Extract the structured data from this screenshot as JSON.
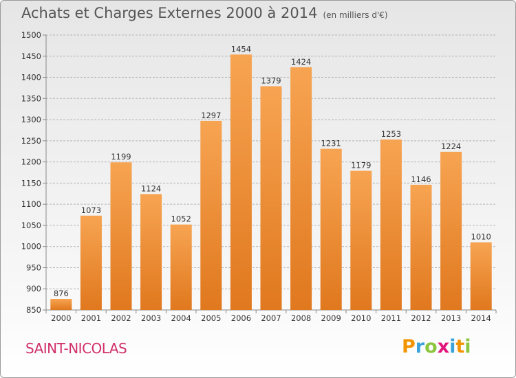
{
  "header": {
    "title": "Achats et Charges Externes 2000 à 2014",
    "unit": "(en milliers d'€)"
  },
  "footer": {
    "city": "SAINT-NICOLAS",
    "logo": [
      "P",
      "r",
      "o",
      "x",
      "i",
      "t",
      "i"
    ]
  },
  "colors": {
    "bar_top": "#f7a452",
    "bar_bottom": "#e0781e",
    "title": "#555555",
    "city": "#d0306a",
    "logo": [
      "#f29400",
      "#3aa3dc",
      "#8cc63e",
      "#e2157a",
      "#3aa3dc",
      "#f29400",
      "#8cc63e"
    ]
  },
  "chart_data": {
    "type": "bar",
    "categories": [
      "2000",
      "2001",
      "2002",
      "2003",
      "2004",
      "2005",
      "2006",
      "2007",
      "2008",
      "2009",
      "2010",
      "2011",
      "2012",
      "2013",
      "2014"
    ],
    "values": [
      876,
      1073,
      1199,
      1124,
      1052,
      1297,
      1454,
      1379,
      1424,
      1231,
      1179,
      1253,
      1146,
      1224,
      1010
    ],
    "ylim": [
      850,
      1500
    ],
    "yticks": [
      850,
      900,
      950,
      1000,
      1050,
      1100,
      1150,
      1200,
      1250,
      1300,
      1350,
      1400,
      1450,
      1500
    ],
    "grid": true,
    "title": "Achats et Charges Externes 2000 à 2014",
    "xlabel": "",
    "ylabel": ""
  }
}
